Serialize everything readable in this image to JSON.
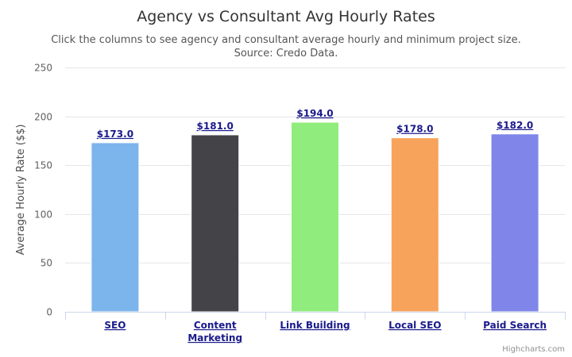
{
  "chart_data": {
    "type": "bar",
    "title": "Agency vs Consultant Avg Hourly Rates",
    "subtitle_lines": [
      "Click the columns to see agency and consultant average hourly and minimum project size.",
      "Source: Credo Data."
    ],
    "xlabel": "",
    "ylabel": "Average Hourly Rate ($$)",
    "ylim": [
      0,
      250
    ],
    "yticks": [
      0,
      50,
      100,
      150,
      200,
      250
    ],
    "grid": true,
    "legend": "none",
    "categories": [
      [
        "SEO"
      ],
      [
        "Content",
        "Marketing"
      ],
      [
        "Link Building"
      ],
      [
        "Local SEO"
      ],
      [
        "Paid Search"
      ]
    ],
    "values": [
      173.0,
      181.0,
      194.0,
      178.0,
      182.0
    ],
    "data_labels": [
      "$173.0",
      "$181.0",
      "$194.0",
      "$178.0",
      "$182.0"
    ],
    "colors": [
      "#7cb5ec",
      "#434348",
      "#90ed7d",
      "#f7a35c",
      "#8085e9"
    ],
    "credit": "Highcharts.com"
  }
}
